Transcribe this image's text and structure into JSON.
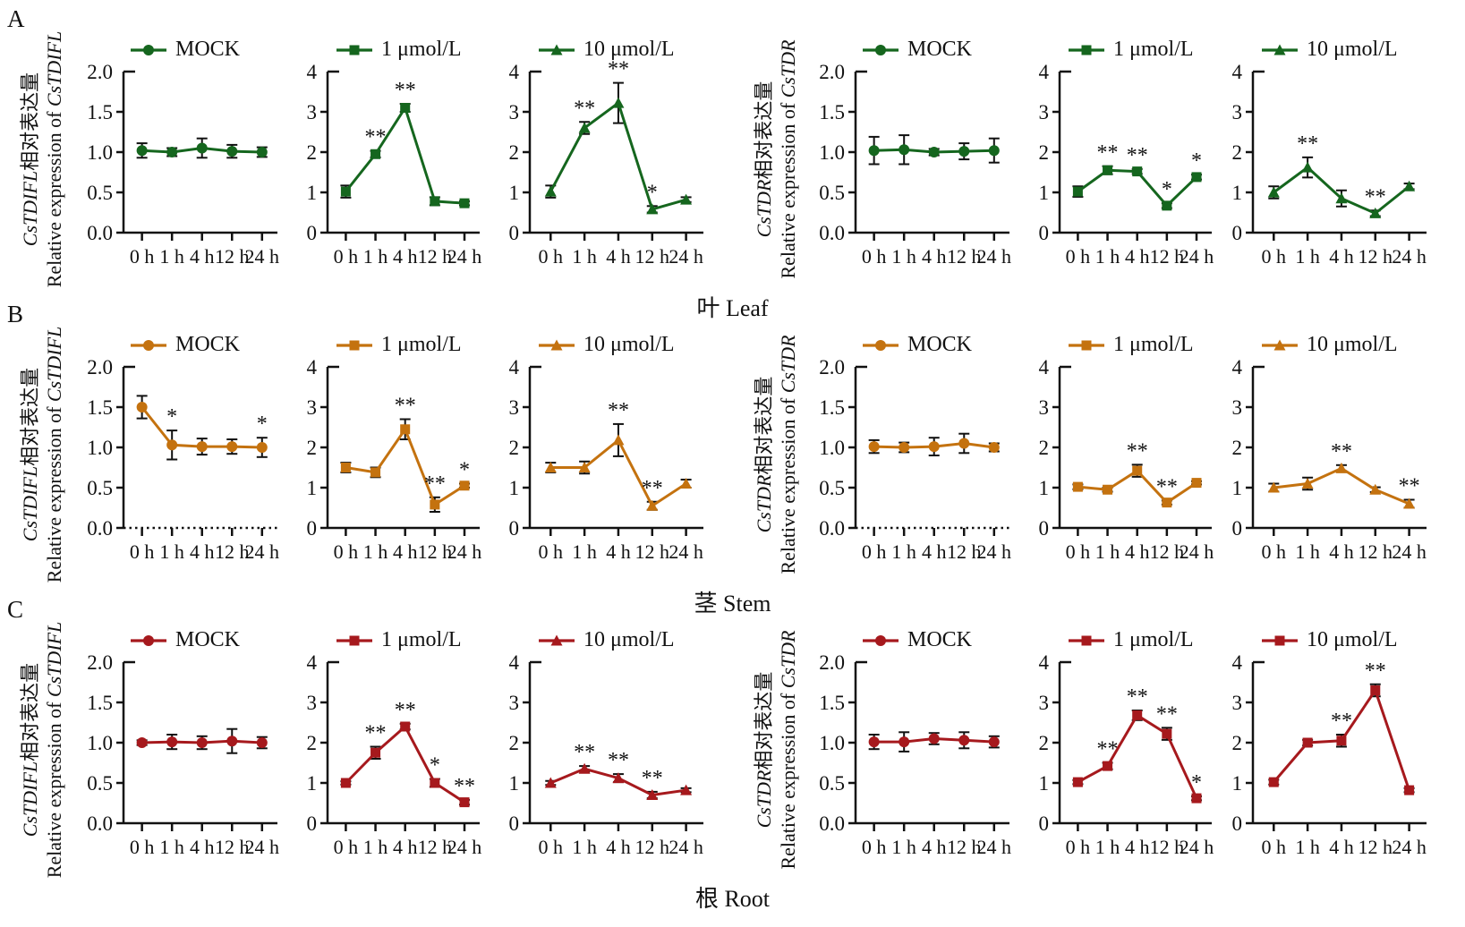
{
  "chart_data": {
    "type": "line",
    "x_categories": [
      "0 h",
      "1 h",
      "4 h",
      "12 h",
      "24 h"
    ],
    "error_bar_color": "#111111",
    "panels": [
      {
        "label": "A",
        "tissue": "叶 Leaf",
        "color": "#15661e",
        "groups": [
          {
            "gene": "CsTDIFL",
            "ylabel_cn_suffix": "相对表达量",
            "ylabel_en_prefix": "Relative expression of ",
            "charts": [
              {
                "legend": "MOCK",
                "marker": "circle",
                "ymax": 2,
                "yticks": [
                  "0.0",
                  "0.5",
                  "1.0",
                  "1.5",
                  "2.0"
                ],
                "values": [
                  1.02,
                  1.0,
                  1.05,
                  1.01,
                  1.0
                ],
                "errors": [
                  0.09,
                  0.05,
                  0.12,
                  0.08,
                  0.06
                ],
                "sig": [
                  "",
                  "",
                  "",
                  "",
                  ""
                ],
                "dotted_axis": false
              },
              {
                "legend": "1 μmol/L",
                "marker": "square",
                "ymax": 4,
                "yticks": [
                  "0",
                  "1",
                  "2",
                  "3",
                  "4"
                ],
                "values": [
                  1.02,
                  1.95,
                  3.1,
                  0.78,
                  0.73
                ],
                "errors": [
                  0.15,
                  0.08,
                  0.1,
                  0.1,
                  0.05
                ],
                "sig": [
                  "",
                  "**",
                  "**",
                  "",
                  ""
                ],
                "dotted_axis": false
              },
              {
                "legend": "10 μmol/L",
                "marker": "triangle",
                "ymax": 4,
                "yticks": [
                  "0",
                  "1",
                  "2",
                  "3",
                  "4"
                ],
                "values": [
                  1.02,
                  2.6,
                  3.22,
                  0.58,
                  0.82
                ],
                "errors": [
                  0.15,
                  0.15,
                  0.5,
                  0.08,
                  0.06
                ],
                "sig": [
                  "",
                  "**",
                  "**",
                  "*",
                  ""
                ],
                "dotted_axis": false
              }
            ]
          },
          {
            "gene": "CsTDR",
            "ylabel_cn_suffix": "相对表达量",
            "ylabel_en_prefix": "Relative expression of ",
            "charts": [
              {
                "legend": "MOCK",
                "marker": "circle",
                "ymax": 2,
                "yticks": [
                  "0.0",
                  "0.5",
                  "1.0",
                  "1.5",
                  "2.0"
                ],
                "values": [
                  1.02,
                  1.03,
                  1.0,
                  1.01,
                  1.02
                ],
                "errors": [
                  0.17,
                  0.18,
                  0.04,
                  0.1,
                  0.15
                ],
                "sig": [
                  "",
                  "",
                  "",
                  "",
                  ""
                ],
                "dotted_axis": false
              },
              {
                "legend": "1 μmol/L",
                "marker": "square",
                "ymax": 4,
                "yticks": [
                  "0",
                  "1",
                  "2",
                  "3",
                  "4"
                ],
                "values": [
                  1.02,
                  1.55,
                  1.52,
                  0.67,
                  1.38
                ],
                "errors": [
                  0.13,
                  0.1,
                  0.06,
                  0.06,
                  0.06
                ],
                "sig": [
                  "",
                  "**",
                  "**",
                  "*",
                  "*"
                ],
                "dotted_axis": false
              },
              {
                "legend": "10 μmol/L",
                "marker": "triangle",
                "ymax": 4,
                "yticks": [
                  "0",
                  "1",
                  "2",
                  "3",
                  "4"
                ],
                "values": [
                  1.0,
                  1.62,
                  0.85,
                  0.48,
                  1.15
                ],
                "errors": [
                  0.15,
                  0.25,
                  0.2,
                  0.07,
                  0.07
                ],
                "sig": [
                  "",
                  "**",
                  "",
                  "**",
                  ""
                ],
                "dotted_axis": false
              }
            ]
          }
        ]
      },
      {
        "label": "B",
        "tissue": "茎 Stem",
        "color": "#c4720f",
        "groups": [
          {
            "gene": "CsTDIFL",
            "ylabel_cn_suffix": "相对表达量",
            "ylabel_en_prefix": "Relative expression of ",
            "charts": [
              {
                "legend": "MOCK",
                "marker": "circle",
                "ymax": 2,
                "yticks": [
                  "0.0",
                  "0.5",
                  "1.0",
                  "1.5",
                  "2.0"
                ],
                "values": [
                  1.5,
                  1.03,
                  1.01,
                  1.01,
                  1.0
                ],
                "errors": [
                  0.14,
                  0.18,
                  0.1,
                  0.09,
                  0.12
                ],
                "sig": [
                  "",
                  "*",
                  "",
                  "",
                  "*"
                ],
                "dotted_axis": true
              },
              {
                "legend": "1 μmol/L",
                "marker": "square",
                "ymax": 4,
                "yticks": [
                  "0",
                  "1",
                  "2",
                  "3",
                  "4"
                ],
                "values": [
                  1.5,
                  1.38,
                  2.45,
                  0.58,
                  1.05
                ],
                "errors": [
                  0.12,
                  0.12,
                  0.25,
                  0.18,
                  0.05
                ],
                "sig": [
                  "",
                  "",
                  "**",
                  "**",
                  "*"
                ],
                "dotted_axis": false
              },
              {
                "legend": "10 μmol/L",
                "marker": "triangle",
                "ymax": 4,
                "yticks": [
                  "0",
                  "1",
                  "2",
                  "3",
                  "4"
                ],
                "values": [
                  1.5,
                  1.5,
                  2.18,
                  0.55,
                  1.1
                ],
                "errors": [
                  0.12,
                  0.15,
                  0.4,
                  0.1,
                  0.1
                ],
                "sig": [
                  "",
                  "",
                  "**",
                  "**",
                  ""
                ],
                "dotted_axis": false
              }
            ]
          },
          {
            "gene": "CsTDR",
            "ylabel_cn_suffix": "相对表达量",
            "ylabel_en_prefix": "Relative expression of ",
            "charts": [
              {
                "legend": "MOCK",
                "marker": "circle",
                "ymax": 2,
                "yticks": [
                  "0.0",
                  "0.5",
                  "1.0",
                  "1.5",
                  "2.0"
                ],
                "values": [
                  1.01,
                  1.0,
                  1.01,
                  1.05,
                  1.0
                ],
                "errors": [
                  0.08,
                  0.06,
                  0.11,
                  0.12,
                  0.05
                ],
                "sig": [
                  "",
                  "",
                  "",
                  "",
                  ""
                ],
                "dotted_axis": true
              },
              {
                "legend": "1 μmol/L",
                "marker": "square",
                "ymax": 4,
                "yticks": [
                  "0",
                  "1",
                  "2",
                  "3",
                  "4"
                ],
                "values": [
                  1.02,
                  0.95,
                  1.42,
                  0.63,
                  1.12
                ],
                "errors": [
                  0.06,
                  0.05,
                  0.15,
                  0.05,
                  0.04
                ],
                "sig": [
                  "",
                  "",
                  "**",
                  "**",
                  ""
                ],
                "dotted_axis": false
              },
              {
                "legend": "10 μmol/L",
                "marker": "triangle",
                "ymax": 4,
                "yticks": [
                  "0",
                  "1",
                  "2",
                  "3",
                  "4"
                ],
                "values": [
                  1.0,
                  1.1,
                  1.48,
                  0.95,
                  0.6
                ],
                "errors": [
                  0.1,
                  0.15,
                  0.08,
                  0.06,
                  0.1
                ],
                "sig": [
                  "",
                  "",
                  "**",
                  "",
                  "**"
                ],
                "dotted_axis": false
              }
            ]
          }
        ]
      },
      {
        "label": "C",
        "tissue": "根 Root",
        "color": "#a6191d",
        "groups": [
          {
            "gene": "CsTDIFL",
            "ylabel_cn_suffix": "相对表达量",
            "ylabel_en_prefix": "Relative expression of ",
            "charts": [
              {
                "legend": "MOCK",
                "marker": "circle",
                "ymax": 2,
                "yticks": [
                  "0.0",
                  "0.5",
                  "1.0",
                  "1.5",
                  "2.0"
                ],
                "values": [
                  1.0,
                  1.01,
                  1.0,
                  1.02,
                  1.0
                ],
                "errors": [
                  0.03,
                  0.09,
                  0.08,
                  0.15,
                  0.07
                ],
                "sig": [
                  "",
                  "",
                  "",
                  "",
                  ""
                ],
                "dotted_axis": false
              },
              {
                "legend": "1 μmol/L",
                "marker": "square",
                "ymax": 4,
                "yticks": [
                  "0",
                  "1",
                  "2",
                  "3",
                  "4"
                ],
                "values": [
                  1.0,
                  1.75,
                  2.4,
                  1.0,
                  0.52
                ],
                "errors": [
                  0.04,
                  0.15,
                  0.07,
                  0.1,
                  0.06
                ],
                "sig": [
                  "",
                  "**",
                  "**",
                  "*",
                  "**"
                ],
                "dotted_axis": false
              },
              {
                "legend": "10 μmol/L",
                "marker": "triangle",
                "ymax": 4,
                "yticks": [
                  "0",
                  "1",
                  "2",
                  "3",
                  "4"
                ],
                "values": [
                  1.0,
                  1.35,
                  1.12,
                  0.7,
                  0.82
                ],
                "errors": [
                  0.05,
                  0.07,
                  0.1,
                  0.08,
                  0.05
                ],
                "sig": [
                  "",
                  "**",
                  "**",
                  "**",
                  ""
                ],
                "dotted_axis": false
              }
            ]
          },
          {
            "gene": "CsTDR",
            "ylabel_cn_suffix": "相对表达量",
            "ylabel_en_prefix": "Relative expression of ",
            "charts": [
              {
                "legend": "MOCK",
                "marker": "circle",
                "ymax": 2,
                "yticks": [
                  "0.0",
                  "0.5",
                  "1.0",
                  "1.5",
                  "2.0"
                ],
                "values": [
                  1.01,
                  1.01,
                  1.05,
                  1.03,
                  1.01
                ],
                "errors": [
                  0.09,
                  0.12,
                  0.07,
                  0.1,
                  0.07
                ],
                "sig": [
                  "",
                  "",
                  "",
                  "",
                  ""
                ],
                "dotted_axis": false
              },
              {
                "legend": "1 μmol/L",
                "marker": "square",
                "ymax": 4,
                "yticks": [
                  "0",
                  "1",
                  "2",
                  "3",
                  "4"
                ],
                "values": [
                  1.02,
                  1.42,
                  2.68,
                  2.22,
                  0.62
                ],
                "errors": [
                  0.05,
                  0.08,
                  0.12,
                  0.15,
                  0.05
                ],
                "sig": [
                  "",
                  "**",
                  "**",
                  "**",
                  "*"
                ],
                "dotted_axis": false
              },
              {
                "legend": "10 μmol/L",
                "marker": "square",
                "ymax": 4,
                "yticks": [
                  "0",
                  "1",
                  "2",
                  "3",
                  "4"
                ],
                "values": [
                  1.02,
                  2.0,
                  2.05,
                  3.3,
                  0.82
                ],
                "errors": [
                  0.06,
                  0.07,
                  0.15,
                  0.15,
                  0.05
                ],
                "sig": [
                  "",
                  "",
                  "**",
                  "**",
                  ""
                ],
                "dotted_axis": false
              }
            ]
          }
        ]
      }
    ]
  }
}
